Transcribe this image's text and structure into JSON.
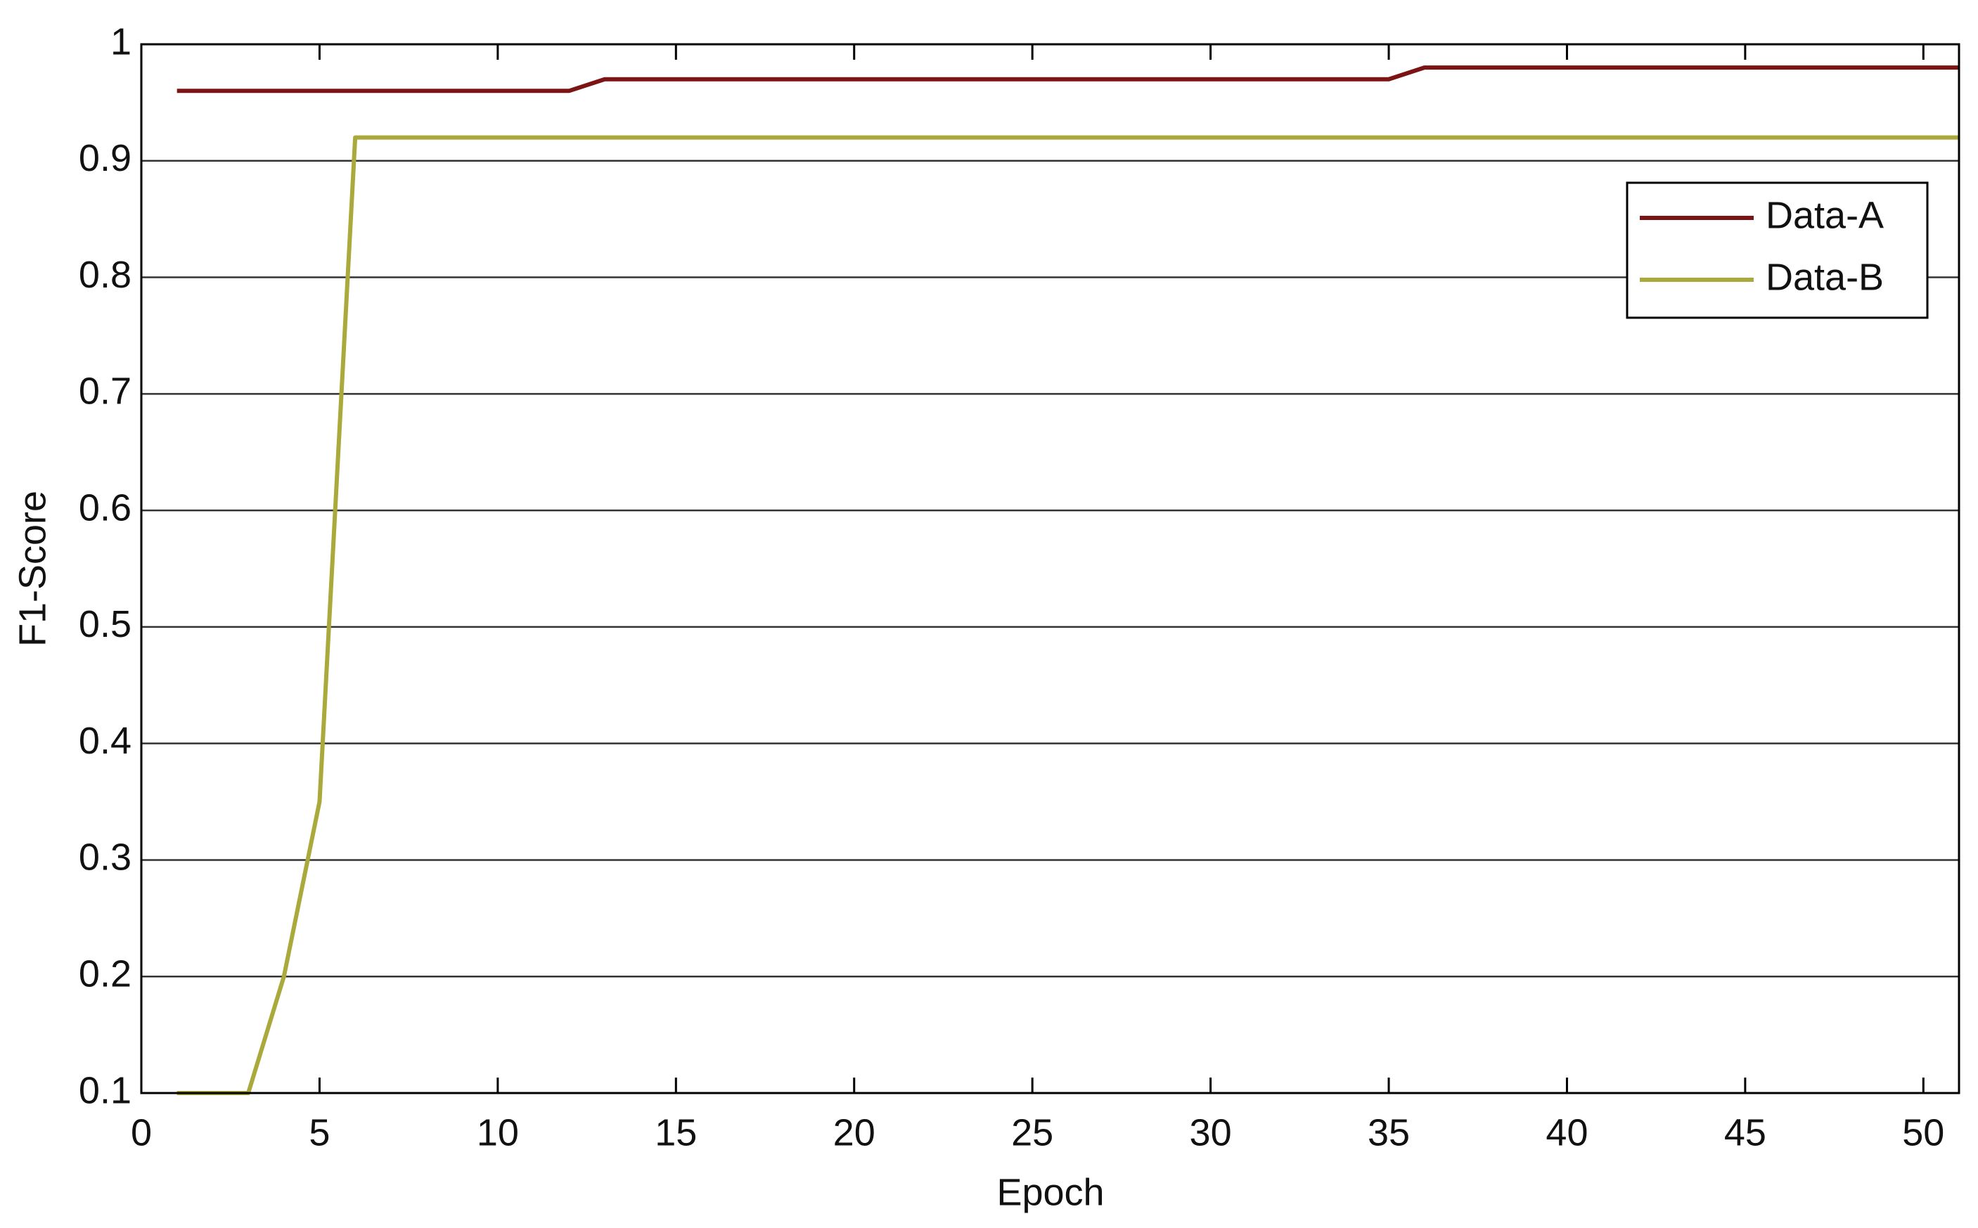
{
  "chart_data": {
    "type": "line",
    "x_label": "Epoch",
    "y_label": "F1-Score",
    "series": [
      {
        "name": "Data-A",
        "color": "#7b1414",
        "x": [
          1,
          12,
          13,
          35,
          36,
          51
        ],
        "values": [
          0.96,
          0.96,
          0.97,
          0.97,
          0.98,
          0.98
        ]
      },
      {
        "name": "Data-B",
        "color": "#a9a93c",
        "x": [
          1,
          2,
          3,
          4,
          5,
          6,
          51
        ],
        "values": [
          0.1,
          0.1,
          0.1,
          0.2,
          0.35,
          0.92,
          0.92
        ]
      }
    ],
    "xlim": [
      0,
      51
    ],
    "xticks": [
      0,
      5,
      10,
      15,
      20,
      25,
      30,
      35,
      40,
      45,
      50
    ],
    "ylim": [
      0.1,
      1
    ],
    "yticks": [
      0.1,
      0.2,
      0.3,
      0.4,
      0.5,
      0.6,
      0.7,
      0.8,
      0.9,
      1
    ],
    "grid": true,
    "legend": "upper-right"
  }
}
